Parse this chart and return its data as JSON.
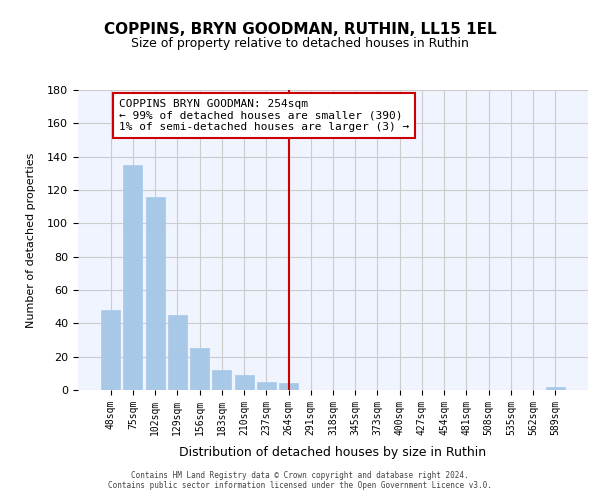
{
  "title": "COPPINS, BRYN GOODMAN, RUTHIN, LL15 1EL",
  "subtitle": "Size of property relative to detached houses in Ruthin",
  "xlabel": "Distribution of detached houses by size in Ruthin",
  "ylabel": "Number of detached properties",
  "bar_labels": [
    "48sqm",
    "75sqm",
    "102sqm",
    "129sqm",
    "156sqm",
    "183sqm",
    "210sqm",
    "237sqm",
    "264sqm",
    "291sqm",
    "318sqm",
    "345sqm",
    "373sqm",
    "400sqm",
    "427sqm",
    "454sqm",
    "481sqm",
    "508sqm",
    "535sqm",
    "562sqm",
    "589sqm"
  ],
  "bar_values": [
    48,
    135,
    116,
    45,
    25,
    12,
    9,
    5,
    4,
    0,
    0,
    0,
    0,
    0,
    0,
    0,
    0,
    0,
    0,
    0,
    2
  ],
  "bar_color": "#a8c8e8",
  "bar_edge_color": "#a8c8e8",
  "vline_x": 8,
  "vline_color": "#cc0000",
  "annotation_title": "COPPINS BRYN GOODMAN: 254sqm",
  "annotation_line1": "← 99% of detached houses are smaller (390)",
  "annotation_line2": "1% of semi-detached houses are larger (3) →",
  "annotation_box_color": "#ffffff",
  "annotation_box_edge": "#cc0000",
  "ylim": [
    0,
    180
  ],
  "yticks": [
    0,
    20,
    40,
    60,
    80,
    100,
    120,
    140,
    160,
    180
  ],
  "grid_color": "#cccccc",
  "background_color": "#f0f4ff",
  "footer1": "Contains HM Land Registry data © Crown copyright and database right 2024.",
  "footer2": "Contains public sector information licensed under the Open Government Licence v3.0."
}
